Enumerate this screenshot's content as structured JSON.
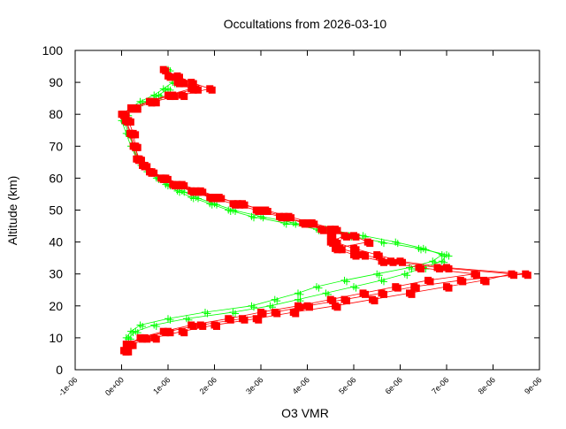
{
  "chart_data": {
    "type": "scatter",
    "title": "Occultations from 2026-03-10",
    "xlabel": "O3 VMR",
    "ylabel": "Altitude (km)",
    "xlim": [
      -1e-06,
      9e-06
    ],
    "ylim": [
      0,
      100
    ],
    "x_ticks": [
      "-1e-06",
      "0e+00",
      "1e-06",
      "2e-06",
      "3e-06",
      "4e-06",
      "5e-06",
      "6e-06",
      "7e-06",
      "8e-06",
      "9e-06"
    ],
    "y_ticks": [
      "0",
      "10",
      "20",
      "30",
      "40",
      "50",
      "60",
      "70",
      "80",
      "90",
      "100"
    ],
    "grid": false,
    "colors": {
      "green": "#00ff00",
      "red": "#ff0000"
    },
    "series": [
      {
        "color": "#00ff00",
        "marker": "plus",
        "line": true,
        "profiles": [
          {
            "altitude": [
              10,
              12,
              14,
              16,
              18,
              20,
              22,
              24,
              26,
              28,
              30,
              32,
              34,
              36,
              38,
              40,
              42,
              44,
              46,
              48,
              50,
              52,
              54,
              56,
              58,
              60,
              62,
              64,
              66,
              70,
              74,
              78,
              80,
              82,
              84,
              86,
              88,
              90,
              94
            ],
            "vmr": [
              1e-07,
              2e-07,
              4e-07,
              1e-06,
              1.8e-06,
              2.8e-06,
              3.3e-06,
              3.8e-06,
              4.2e-06,
              4.8e-06,
              5.5e-06,
              6.2e-06,
              6.7e-06,
              6.9e-06,
              6.5e-06,
              5.9e-06,
              5.2e-06,
              4.4e-06,
              3.7e-06,
              3e-06,
              2.4e-06,
              2e-06,
              1.6e-06,
              1.3e-06,
              1e-06,
              8e-07,
              6e-07,
              4.5e-07,
              3.5e-07,
              2.5e-07,
              1.5e-07,
              5e-08,
              5e-08,
              2e-07,
              4e-07,
              7e-07,
              9e-07,
              1.1e-06,
              1e-06
            ]
          },
          {
            "altitude": [
              10,
              12,
              14,
              16,
              18,
              20,
              22,
              24,
              26,
              28,
              30,
              32,
              34,
              36,
              38,
              40,
              42,
              44,
              46,
              48,
              50,
              52,
              54,
              56,
              58,
              60,
              62,
              64,
              66,
              70,
              74,
              78,
              80,
              82,
              84,
              86,
              88
            ],
            "vmr": [
              1.5e-07,
              3e-07,
              7e-07,
              1.4e-06,
              2.4e-06,
              3.2e-06,
              3.8e-06,
              4.4e-06,
              5e-06,
              5.6e-06,
              6.1e-06,
              6.5e-06,
              6.9e-06,
              7e-06,
              6.4e-06,
              5.6e-06,
              4.9e-06,
              4.2e-06,
              3.5e-06,
              2.8e-06,
              2.3e-06,
              1.9e-06,
              1.5e-06,
              1.2e-06,
              9.5e-07,
              7.5e-07,
              5.5e-07,
              4.2e-07,
              3.3e-07,
              2e-07,
              1e-07,
              0.0,
              1e-07,
              3e-07,
              5.5e-07,
              8e-07,
              1e-06
            ]
          }
        ]
      },
      {
        "color": "#ff0000",
        "marker": "square",
        "line": true,
        "profiles": [
          {
            "altitude": [
              6,
              8,
              10,
              12,
              14,
              16,
              18,
              20,
              22,
              24,
              26,
              28,
              30,
              32,
              34,
              36,
              38,
              40,
              42,
              44,
              46,
              48,
              50,
              52,
              54,
              56,
              58,
              60,
              62,
              64,
              66,
              70,
              74,
              78,
              80,
              82,
              84,
              86,
              88,
              90,
              92,
              94
            ],
            "vmr": [
              5e-08,
              1e-07,
              5e-07,
              1e-06,
              1.7e-06,
              2.6e-06,
              3.3e-06,
              4e-06,
              4.8e-06,
              5.6e-06,
              6.3e-06,
              7.3e-06,
              8.7e-06,
              7e-06,
              6e-06,
              5.5e-06,
              5e-06,
              4.6e-06,
              4.5e-06,
              4.3e-06,
              3.9e-06,
              3.5e-06,
              3e-06,
              2.6e-06,
              2e-06,
              1.6e-06,
              1.2e-06,
              9e-07,
              6e-07,
              4.5e-07,
              3.5e-07,
              3e-07,
              2.5e-07,
              1.5e-07,
              5e-08,
              3e-07,
              7e-07,
              1.3e-06,
              1.9e-06,
              1.5e-06,
              1.2e-06,
              9e-07
            ]
          },
          {
            "altitude": [
              6,
              8,
              10,
              12,
              14,
              16,
              18,
              20,
              22,
              24,
              26,
              28,
              30,
              32,
              34,
              36,
              38,
              40,
              42,
              44,
              46,
              48,
              50,
              52,
              54,
              56,
              58,
              60,
              62,
              64,
              66,
              70,
              74,
              78,
              80,
              82,
              84,
              86,
              88,
              90,
              92
            ],
            "vmr": [
              1e-07,
              2e-07,
              7e-07,
              1.3e-06,
              2e-06,
              2.9e-06,
              3.7e-06,
              4.6e-06,
              5.4e-06,
              6.2e-06,
              7e-06,
              7.8e-06,
              8.4e-06,
              6.8e-06,
              5.8e-06,
              5.2e-06,
              4.7e-06,
              4.5e-06,
              4.8e-06,
              4.6e-06,
              4.1e-06,
              3.6e-06,
              3.1e-06,
              2.5e-06,
              2.1e-06,
              1.7e-06,
              1.3e-06,
              9.5e-07,
              6.5e-07,
              5e-07,
              3.8e-07,
              2.8e-07,
              2e-07,
              1e-07,
              0.0,
              2e-07,
              6e-07,
              1e-06,
              1.5e-06,
              1.2e-06,
              1e-06
            ]
          },
          {
            "altitude": [
              6,
              8,
              10,
              12,
              14,
              16,
              18,
              20,
              22,
              24,
              26,
              28,
              30,
              32,
              34,
              36,
              38,
              40,
              42,
              44,
              46,
              48,
              50,
              52,
              54,
              56,
              58,
              60,
              62,
              64,
              66,
              70,
              74,
              78,
              80,
              82,
              84,
              86,
              88,
              90
            ],
            "vmr": [
              5e-08,
              1.5e-07,
              4e-07,
              9e-07,
              1.5e-06,
              2.3e-06,
              3e-06,
              3.8e-06,
              4.5e-06,
              5.2e-06,
              5.9e-06,
              6.6e-06,
              7.6e-06,
              6.4e-06,
              5.6e-06,
              5e-06,
              4.6e-06,
              5.3e-06,
              5e-06,
              4.5e-06,
              4e-06,
              3.4e-06,
              2.9e-06,
              2.4e-06,
              1.9e-06,
              1.5e-06,
              1.1e-06,
              8.5e-07,
              6e-07,
              4.5e-07,
              3.2e-07,
              2.5e-07,
              1.8e-07,
              8e-08,
              2e-08,
              2.5e-07,
              6e-07,
              1.1e-06,
              1.6e-06,
              1.3e-06
            ]
          }
        ]
      }
    ]
  }
}
